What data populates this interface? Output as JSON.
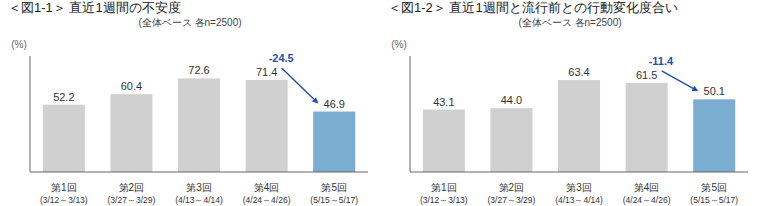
{
  "chart_data": [
    {
      "type": "bar",
      "title": "＜図1-1＞ 直近1週間の不安度",
      "subtitle": "(全体ベース 各n=2500)",
      "ylabel": "(%)",
      "categories": [
        "第1回\n(3/12～3/13)",
        "第2回\n(3/27～3/29)",
        "第3回\n(4/13～4/14)",
        "第4回\n(4/24～4/26)",
        "第5回\n(5/15～5/17)"
      ],
      "values": [
        52.2,
        60.4,
        72.6,
        71.4,
        46.9
      ],
      "value_labels": [
        "52.2",
        "60.4",
        "72.6",
        "71.4",
        "46.9"
      ],
      "colors": [
        "#d0d0d0",
        "#d0d0d0",
        "#d0d0d0",
        "#d0d0d0",
        "#7aadd0"
      ],
      "annotation": "-24.5",
      "ylim": [
        0,
        90
      ],
      "data_labels": true,
      "tick_labels": "x",
      "grid": false
    },
    {
      "type": "bar",
      "title": "＜図1-2＞ 直近1週間と流行前との行動変化度合い",
      "subtitle": "(全体ベース 各n=2500)",
      "ylabel": "(%)",
      "categories": [
        "第1回\n(3/12～3/13)",
        "第2回\n(3/27～3/29)",
        "第3回\n(4/13～4/14)",
        "第4回\n(4/24～4/26)",
        "第5回\n(5/15～5/17)"
      ],
      "values": [
        43.1,
        44.0,
        63.4,
        61.5,
        50.1
      ],
      "value_labels": [
        "43.1",
        "44.0",
        "63.4",
        "61.5",
        "50.1"
      ],
      "colors": [
        "#d0d0d0",
        "#d0d0d0",
        "#d0d0d0",
        "#d0d0d0",
        "#7aadd0"
      ],
      "annotation": "-11.4",
      "ylim": [
        0,
        80
      ],
      "data_labels": true,
      "tick_labels": "x",
      "grid": false
    }
  ]
}
